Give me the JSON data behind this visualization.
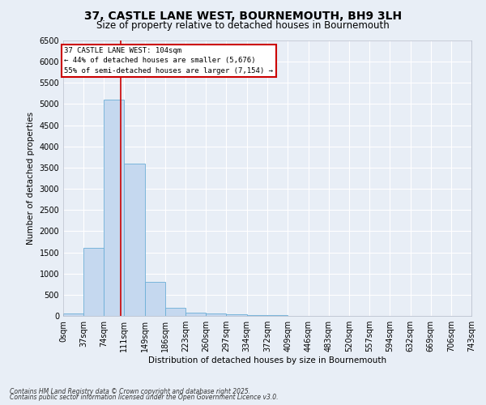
{
  "title_line1": "37, CASTLE LANE WEST, BOURNEMOUTH, BH9 3LH",
  "title_line2": "Size of property relative to detached houses in Bournemouth",
  "xlabel": "Distribution of detached houses by size in Bournemouth",
  "ylabel": "Number of detached properties",
  "footer_line1": "Contains HM Land Registry data © Crown copyright and database right 2025.",
  "footer_line2": "Contains public sector information licensed under the Open Government Licence v3.0.",
  "annotation_title": "37 CASTLE LANE WEST: 104sqm",
  "annotation_line1": "← 44% of detached houses are smaller (5,676)",
  "annotation_line2": "55% of semi-detached houses are larger (7,154) →",
  "property_size": 104,
  "bin_edges": [
    0,
    37,
    74,
    111,
    149,
    186,
    223,
    260,
    297,
    334,
    372,
    409,
    446,
    483,
    520,
    557,
    594,
    632,
    669,
    706,
    743
  ],
  "bar_heights": [
    50,
    1600,
    5100,
    3600,
    800,
    200,
    80,
    60,
    30,
    20,
    10,
    5,
    0,
    0,
    0,
    0,
    0,
    0,
    0,
    0
  ],
  "bar_color": "#c5d8ef",
  "bar_edge_color": "#6baed6",
  "red_line_color": "#cc0000",
  "background_color": "#e8eef6",
  "annotation_box_color": "#ffffff",
  "annotation_box_edge": "#cc0000",
  "ylim": [
    0,
    6500
  ],
  "yticks": [
    0,
    500,
    1000,
    1500,
    2000,
    2500,
    3000,
    3500,
    4000,
    4500,
    5000,
    5500,
    6000,
    6500
  ],
  "grid_color": "#ffffff",
  "title_fontsize": 10,
  "subtitle_fontsize": 8.5,
  "axis_label_fontsize": 7.5,
  "tick_fontsize": 7,
  "footer_fontsize": 5.5
}
